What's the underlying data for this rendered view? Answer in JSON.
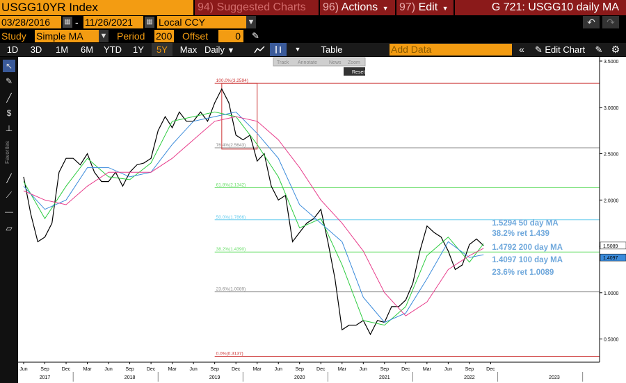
{
  "header": {
    "ticker": "USGG10YR Index",
    "suggested": {
      "num": "94)",
      "label": "Suggested Charts"
    },
    "actions": {
      "num": "96)",
      "label": "Actions"
    },
    "edit": {
      "num": "97)",
      "label": "Edit"
    },
    "title": "G 721: USGG10 daily MA"
  },
  "controls": {
    "start_date": "03/28/2016",
    "end_date": "11/26/2021",
    "date_sep": "-",
    "currency": "Local CCY",
    "study_label": "Study",
    "study_value": "Simple MA",
    "period_label": "Period",
    "period_value": "200",
    "offset_label": "Offset",
    "offset_value": "0"
  },
  "toolbar": {
    "ranges": [
      "1D",
      "3D",
      "1M",
      "6M",
      "YTD",
      "1Y",
      "5Y",
      "Max"
    ],
    "selected_range": "5Y",
    "frequency": "Daily",
    "table_label": "Table",
    "add_data_placeholder": "Add Data",
    "edit_chart_label": "Edit Chart",
    "overlay_tabs": [
      "Track",
      "Annotate",
      "News",
      "Zoom"
    ],
    "reset_label": "Reset"
  },
  "sidebar": {
    "favorites_label": "Favorites"
  },
  "colors": {
    "orange": "#f39c12",
    "price": "#ffffff",
    "ma50": "#2ecc40",
    "ma100": "#3b8bdb",
    "ma200": "#e83e8c"
  },
  "chart_data": {
    "type": "line",
    "x_range": [
      "2016-06",
      "2023-03"
    ],
    "ylim": [
      0.25,
      3.5
    ],
    "y_ticks": [
      0.5,
      1.0,
      1.5,
      2.0,
      2.5,
      3.0,
      3.5
    ],
    "y_tick_labels": [
      "0.5000",
      "1.0000",
      "1.5000",
      "2.0000",
      "2.5000",
      "3.0000",
      "3.5000"
    ],
    "x_month_labels": [
      {
        "date": "2016-06",
        "label": "Jun"
      },
      {
        "date": "2016-09",
        "label": "Sep"
      },
      {
        "date": "2016-12",
        "label": "Dec"
      },
      {
        "date": "2017-03",
        "label": "Mar"
      },
      {
        "date": "2017-06",
        "label": "Jun"
      },
      {
        "date": "2017-09",
        "label": "Sep"
      },
      {
        "date": "2017-12",
        "label": "Dec"
      },
      {
        "date": "2018-03",
        "label": "Mar"
      },
      {
        "date": "2018-06",
        "label": "Jun"
      },
      {
        "date": "2018-09",
        "label": "Sep"
      },
      {
        "date": "2018-12",
        "label": "Dec"
      },
      {
        "date": "2019-03",
        "label": "Mar"
      },
      {
        "date": "2019-06",
        "label": "Jun"
      },
      {
        "date": "2019-09",
        "label": "Sep"
      },
      {
        "date": "2019-12",
        "label": "Dec"
      },
      {
        "date": "2020-03",
        "label": "Mar"
      },
      {
        "date": "2020-06",
        "label": "Jun"
      },
      {
        "date": "2020-09",
        "label": "Sep"
      },
      {
        "date": "2020-12",
        "label": "Dec"
      },
      {
        "date": "2021-03",
        "label": "Mar"
      },
      {
        "date": "2021-06",
        "label": "Jun"
      },
      {
        "date": "2021-09",
        "label": "Sep"
      },
      {
        "date": "2021-12",
        "label": "Dec"
      }
    ],
    "x_year_labels": [
      {
        "date": "2016-09",
        "label": "2017"
      },
      {
        "date": "2017-09",
        "label": "2018"
      },
      {
        "date": "2018-09",
        "label": "2019"
      },
      {
        "date": "2019-09",
        "label": "2020"
      },
      {
        "date": "2020-09",
        "label": "2021"
      },
      {
        "date": "2021-09",
        "label": "2022"
      },
      {
        "date": "2022-09",
        "label": "2023"
      }
    ],
    "series": [
      {
        "name": "USGG10YR",
        "color": "#ffffff",
        "points": [
          [
            "2016-06",
            2.25
          ],
          [
            "2016-07",
            1.85
          ],
          [
            "2016-08",
            1.55
          ],
          [
            "2016-09",
            1.6
          ],
          [
            "2016-10",
            1.75
          ],
          [
            "2016-11",
            2.3
          ],
          [
            "2016-12",
            2.45
          ],
          [
            "2017-01",
            2.45
          ],
          [
            "2017-02",
            2.38
          ],
          [
            "2017-03",
            2.5
          ],
          [
            "2017-04",
            2.3
          ],
          [
            "2017-05",
            2.2
          ],
          [
            "2017-06",
            2.2
          ],
          [
            "2017-07",
            2.3
          ],
          [
            "2017-08",
            2.15
          ],
          [
            "2017-09",
            2.3
          ],
          [
            "2017-10",
            2.38
          ],
          [
            "2017-11",
            2.4
          ],
          [
            "2017-12",
            2.45
          ],
          [
            "2018-01",
            2.75
          ],
          [
            "2018-02",
            2.9
          ],
          [
            "2018-03",
            2.78
          ],
          [
            "2018-04",
            2.95
          ],
          [
            "2018-05",
            2.85
          ],
          [
            "2018-06",
            2.85
          ],
          [
            "2018-07",
            2.95
          ],
          [
            "2018-08",
            2.85
          ],
          [
            "2018-09",
            3.05
          ],
          [
            "2018-10",
            3.2
          ],
          [
            "2018-11",
            3.05
          ],
          [
            "2018-12",
            2.7
          ],
          [
            "2019-01",
            2.65
          ],
          [
            "2019-02",
            2.7
          ],
          [
            "2019-03",
            2.42
          ],
          [
            "2019-04",
            2.5
          ],
          [
            "2019-05",
            2.15
          ],
          [
            "2019-06",
            2.0
          ],
          [
            "2019-07",
            2.05
          ],
          [
            "2019-08",
            1.55
          ],
          [
            "2019-09",
            1.65
          ],
          [
            "2019-10",
            1.75
          ],
          [
            "2019-11",
            1.8
          ],
          [
            "2019-12",
            1.9
          ],
          [
            "2020-01",
            1.55
          ],
          [
            "2020-02",
            1.15
          ],
          [
            "2020-03",
            0.6
          ],
          [
            "2020-04",
            0.65
          ],
          [
            "2020-05",
            0.65
          ],
          [
            "2020-06",
            0.7
          ],
          [
            "2020-07",
            0.55
          ],
          [
            "2020-08",
            0.7
          ],
          [
            "2020-09",
            0.68
          ],
          [
            "2020-10",
            0.85
          ],
          [
            "2020-11",
            0.85
          ],
          [
            "2020-12",
            0.92
          ],
          [
            "2021-01",
            1.1
          ],
          [
            "2021-02",
            1.45
          ],
          [
            "2021-03",
            1.72
          ],
          [
            "2021-04",
            1.65
          ],
          [
            "2021-05",
            1.6
          ],
          [
            "2021-06",
            1.45
          ],
          [
            "2021-07",
            1.25
          ],
          [
            "2021-08",
            1.3
          ],
          [
            "2021-09",
            1.52
          ],
          [
            "2021-10",
            1.58
          ],
          [
            "2021-11",
            1.5089
          ]
        ]
      },
      {
        "name": "50 day MA",
        "color": "#2ecc40",
        "points": [
          [
            "2016-06",
            2.2
          ],
          [
            "2016-09",
            1.8
          ],
          [
            "2016-12",
            2.15
          ],
          [
            "2017-03",
            2.45
          ],
          [
            "2017-06",
            2.25
          ],
          [
            "2017-09",
            2.22
          ],
          [
            "2017-12",
            2.4
          ],
          [
            "2018-03",
            2.85
          ],
          [
            "2018-06",
            2.9
          ],
          [
            "2018-09",
            2.95
          ],
          [
            "2018-12",
            2.9
          ],
          [
            "2019-03",
            2.6
          ],
          [
            "2019-06",
            2.25
          ],
          [
            "2019-09",
            1.7
          ],
          [
            "2019-12",
            1.8
          ],
          [
            "2020-03",
            1.3
          ],
          [
            "2020-06",
            0.7
          ],
          [
            "2020-09",
            0.65
          ],
          [
            "2020-12",
            0.85
          ],
          [
            "2021-03",
            1.4
          ],
          [
            "2021-06",
            1.6
          ],
          [
            "2021-09",
            1.33
          ],
          [
            "2021-11",
            1.5294
          ]
        ]
      },
      {
        "name": "100 day MA",
        "color": "#3b8bdb",
        "points": [
          [
            "2016-06",
            2.15
          ],
          [
            "2016-09",
            1.9
          ],
          [
            "2016-12",
            2.0
          ],
          [
            "2017-03",
            2.35
          ],
          [
            "2017-06",
            2.35
          ],
          [
            "2017-09",
            2.25
          ],
          [
            "2017-12",
            2.3
          ],
          [
            "2018-03",
            2.6
          ],
          [
            "2018-06",
            2.85
          ],
          [
            "2018-09",
            2.9
          ],
          [
            "2018-12",
            2.95
          ],
          [
            "2019-03",
            2.72
          ],
          [
            "2019-06",
            2.45
          ],
          [
            "2019-09",
            1.95
          ],
          [
            "2019-12",
            1.75
          ],
          [
            "2020-03",
            1.55
          ],
          [
            "2020-06",
            0.95
          ],
          [
            "2020-09",
            0.68
          ],
          [
            "2020-12",
            0.78
          ],
          [
            "2021-03",
            1.15
          ],
          [
            "2021-06",
            1.55
          ],
          [
            "2021-09",
            1.38
          ],
          [
            "2021-11",
            1.4097
          ]
        ]
      },
      {
        "name": "200 day MA",
        "color": "#e83e8c",
        "points": [
          [
            "2016-06",
            2.1
          ],
          [
            "2016-09",
            2.0
          ],
          [
            "2016-12",
            1.95
          ],
          [
            "2017-03",
            2.15
          ],
          [
            "2017-06",
            2.3
          ],
          [
            "2017-09",
            2.3
          ],
          [
            "2017-12",
            2.3
          ],
          [
            "2018-03",
            2.45
          ],
          [
            "2018-06",
            2.65
          ],
          [
            "2018-09",
            2.85
          ],
          [
            "2018-12",
            2.9
          ],
          [
            "2019-03",
            2.85
          ],
          [
            "2019-06",
            2.65
          ],
          [
            "2019-09",
            2.35
          ],
          [
            "2019-12",
            2.0
          ],
          [
            "2020-03",
            1.75
          ],
          [
            "2020-06",
            1.45
          ],
          [
            "2020-09",
            1.0
          ],
          [
            "2020-12",
            0.75
          ],
          [
            "2021-03",
            0.9
          ],
          [
            "2021-06",
            1.25
          ],
          [
            "2021-09",
            1.4
          ],
          [
            "2021-11",
            1.4792
          ]
        ]
      }
    ],
    "fibonacci": [
      {
        "level": "100.0%",
        "value": 3.2594,
        "label": "100.0%(3.2594)",
        "color": "#cc3333"
      },
      {
        "level": "76.4%",
        "value": 2.5643,
        "label": "76.4%(2.5643)",
        "color": "#888888"
      },
      {
        "level": "61.8%",
        "value": 2.1342,
        "label": "61.8%(2.1342)",
        "color": "#66dd66"
      },
      {
        "level": "50.0%",
        "value": 1.7866,
        "label": "50.0%(1.7866)",
        "color": "#66ccee"
      },
      {
        "level": "38.2%",
        "value": 1.439,
        "label": "38.2%(1.4390)",
        "color": "#66dd66"
      },
      {
        "level": "23.6%",
        "value": 1.0089,
        "label": "23.6%(1.0089)",
        "color": "#888888"
      },
      {
        "level": "0.0%",
        "value": 0.3137,
        "label": "0.0%(0.3137)",
        "color": "#cc3333"
      }
    ],
    "fib_rect": {
      "start": "2018-10",
      "end": "2019-03",
      "top": 3.2594,
      "bottom": 2.55
    },
    "annotations": [
      "1.5294 50 day MA",
      "38.2% ret 1.439",
      "1.4792 200 day MA",
      "1.4097 100 day MA",
      "23.6% ret 1.0089"
    ],
    "last_value_labels": [
      {
        "value": 1.5089,
        "label": "1.5089",
        "bg": "#ffffff",
        "fg": "#000000"
      },
      {
        "value": 1.4097,
        "label": "1.4097",
        "bg": "#3b8bdb",
        "fg": "#000000"
      }
    ]
  }
}
